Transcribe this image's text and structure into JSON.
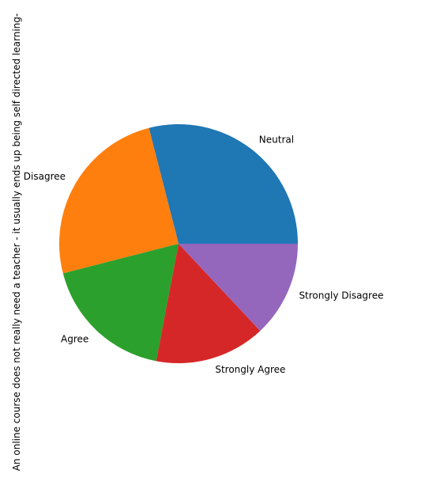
{
  "chart_data": {
    "type": "pie",
    "title": "",
    "ylabel": "An online course does not really need a teacher - it usually ends up being self directed learning-",
    "labels": [
      "Neutral",
      "Disagree",
      "Agree",
      "Strongly Agree",
      "Strongly Disagree"
    ],
    "values": [
      29,
      25,
      18,
      15,
      13
    ],
    "colors": [
      "#1f77b4",
      "#ff7f0e",
      "#2ca02c",
      "#d62728",
      "#9467bd"
    ],
    "startangle": 0,
    "direction": "counterclockwise",
    "legend": "none"
  }
}
